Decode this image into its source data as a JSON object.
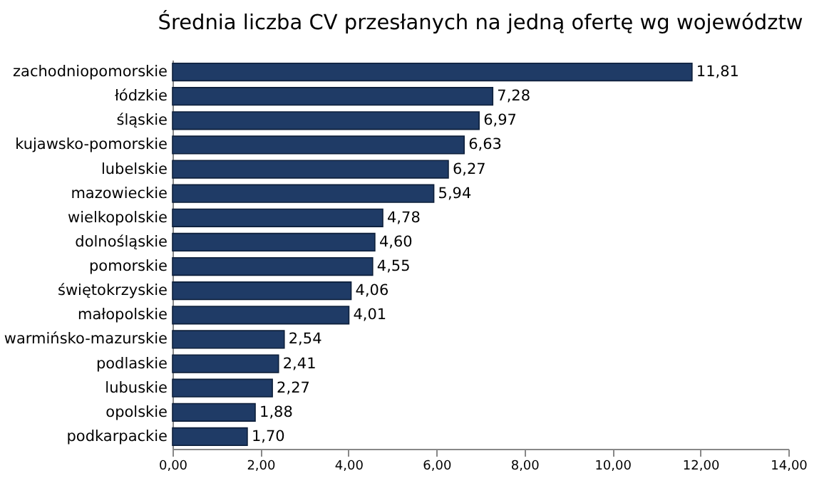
{
  "chart_data": {
    "type": "bar",
    "orientation": "horizontal",
    "title": "Średnia liczba CV przesłanych na jedną ofertę  wg województw",
    "categories": [
      "zachodniopomorskie",
      "łódzkie",
      "śląskie",
      "kujawsko-pomorskie",
      "lubelskie",
      "mazowieckie",
      "wielkopolskie",
      "dolnośląskie",
      "pomorskie",
      "świętokrzyskie",
      "małopolskie",
      "warmińsko-mazurskie",
      "podlaskie",
      "lubuskie",
      "opolskie",
      "podkarpackie"
    ],
    "values": [
      11.81,
      7.28,
      6.97,
      6.63,
      6.27,
      5.94,
      4.78,
      4.6,
      4.55,
      4.06,
      4.01,
      2.54,
      2.41,
      2.27,
      1.88,
      1.7
    ],
    "value_labels": [
      "11,81",
      "7,28",
      "6,97",
      "6,63",
      "6,27",
      "5,94",
      "4,78",
      "4,60",
      "4,55",
      "4,06",
      "4,01",
      "2,54",
      "2,41",
      "2,27",
      "1,88",
      "1,70"
    ],
    "color": "#1f3b66",
    "xlim": [
      0,
      14
    ],
    "xticks": [
      {
        "value": 0,
        "label": "0,00"
      },
      {
        "value": 2,
        "label": "2,00"
      },
      {
        "value": 4,
        "label": "4,00"
      },
      {
        "value": 6,
        "label": "6,00"
      },
      {
        "value": 8,
        "label": "8,00"
      },
      {
        "value": 10,
        "label": "10,00"
      },
      {
        "value": 12,
        "label": "12,00"
      },
      {
        "value": 14,
        "label": "14,00"
      }
    ],
    "grid": false
  }
}
